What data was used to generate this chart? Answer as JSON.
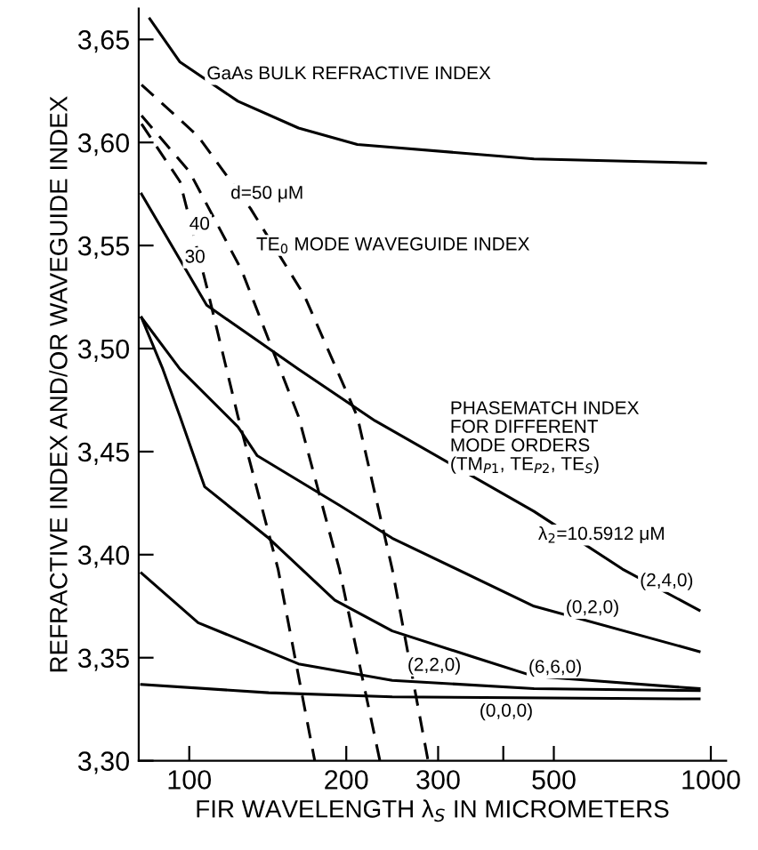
{
  "chart_data": {
    "type": "line",
    "xlabel": "FIR WAVELENGTH λ$_{S}$ IN MICROMETERS",
    "ylabel": "REFRACTIVE INDEX AND/OR WAVEGUIDE INDEX",
    "log": "x",
    "xlim": [
      80,
      1070
    ],
    "ylim": [
      3.3,
      3.665
    ],
    "xticks": [
      100,
      200,
      300,
      {
        "value": 400,
        "label": null
      },
      500,
      1000
    ],
    "yticks": [
      {
        "value": 3.3,
        "label": "3,30"
      },
      {
        "value": 3.35,
        "label": "3,35"
      },
      {
        "value": 3.4,
        "label": "3,40"
      },
      {
        "value": 3.45,
        "label": "3,45"
      },
      {
        "value": 3.5,
        "label": "3,50"
      },
      {
        "value": 3.55,
        "label": "3,55"
      },
      {
        "value": 3.6,
        "label": "3,60"
      },
      {
        "value": 3.65,
        "label": "3,65"
      }
    ],
    "grid": false,
    "legend": false,
    "marker": "none",
    "line_style": "solid",
    "series": [
      {
        "color": "#000000",
        "x": [
          84,
          96,
          124,
          162,
          210,
          458,
          977
        ],
        "values": [
          3.66,
          3.639,
          3.62,
          3.607,
          3.599,
          3.592,
          3.59
        ]
      },
      {
        "color": "#000000",
        "line_style": "dashed",
        "x": [
          81,
          104,
          131,
          166,
          210,
          245,
          287
        ],
        "values": [
          3.628,
          3.603,
          3.568,
          3.526,
          3.467,
          3.393,
          3.3
        ]
      },
      {
        "color": "#000000",
        "line_style": "dashed",
        "x": [
          81,
          100,
          126,
          162,
          194,
          232
        ],
        "values": [
          3.613,
          3.586,
          3.538,
          3.467,
          3.393,
          3.3
        ]
      },
      {
        "color": "#000000",
        "line_style": "dashed",
        "x": [
          81,
          96,
          108,
          124,
          148,
          174
        ],
        "values": [
          3.609,
          3.581,
          3.53,
          3.467,
          3.393,
          3.3
        ]
      },
      {
        "color": "#000000",
        "x": [
          81,
          108,
          162,
          227,
          458,
          677,
          950
        ],
        "values": [
          3.575,
          3.521,
          3.49,
          3.465,
          3.421,
          3.393,
          3.373
        ]
      },
      {
        "color": "#000000",
        "x": [
          81,
          96,
          124,
          135,
          194,
          245,
          458,
          950
        ],
        "values": [
          3.515,
          3.49,
          3.462,
          3.448,
          3.424,
          3.408,
          3.375,
          3.353
        ]
      },
      {
        "color": "#000000",
        "x": [
          81,
          89,
          96,
          107,
          142,
          190,
          245,
          354,
          458,
          950
        ],
        "values": [
          3.515,
          3.49,
          3.467,
          3.433,
          3.408,
          3.378,
          3.363,
          3.35,
          3.341,
          3.335
        ]
      },
      {
        "color": "#000000",
        "x": [
          81,
          104,
          162,
          245,
          458,
          950
        ],
        "values": [
          3.391,
          3.367,
          3.347,
          3.339,
          3.335,
          3.334
        ]
      },
      {
        "color": "#000000",
        "x": [
          81,
          142,
          245,
          950
        ],
        "values": [
          3.337,
          3.333,
          3.331,
          3.33
        ]
      }
    ],
    "annotations": [
      {
        "text": "GaAs BULK REFRACTIVE INDEX",
        "x": 108,
        "y": 3.633
      },
      {
        "text": "d=50 μM",
        "x": 120,
        "y": 3.575
      },
      {
        "text": "40",
        "x": 100,
        "y": 3.56
      },
      {
        "text": "30",
        "x": 98,
        "y": 3.544
      },
      "TE$_{0}$ MODE WAVEGUIDE INDEX",
      "PHASEMATCH INDEX\nFOR DIFFERENT\nMODE ORDERS\n(TM$_{P1}$, TE$_{P2}$, TE$_{S}$)",
      "λ$_{2}$=10.5912 μM",
      {
        "text": "(2,4,0)",
        "x": 731,
        "y": 3.387
      },
      {
        "text": "(0,2,0)",
        "x": 527,
        "y": 3.374
      },
      {
        "text": "(6,6,0)",
        "x": 447,
        "y": 3.345
      },
      {
        "text": "(2,2,0)",
        "x": 262,
        "y": 3.346
      },
      "(0,0,0)"
    ]
  }
}
